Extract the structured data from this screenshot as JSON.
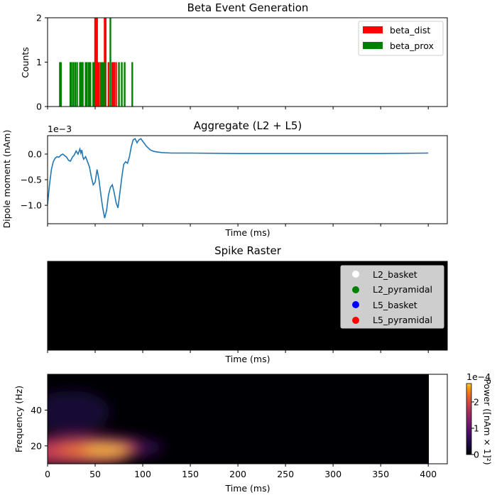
{
  "chart_data": [
    {
      "type": "bar",
      "title": "Beta Event Generation",
      "ylabel": "Counts",
      "xlabel": "",
      "xlim": [
        0,
        420
      ],
      "ylim": [
        0,
        2
      ],
      "yticks": [
        0,
        1,
        2
      ],
      "legend": {
        "placement": "top-right",
        "entries": [
          "beta_dist",
          "beta_prox"
        ]
      },
      "series": [
        {
          "name": "beta_dist",
          "color": "#ff0000",
          "bars": [
            [
              50,
              2
            ],
            [
              51,
              2
            ],
            [
              52,
              2
            ],
            [
              53,
              1
            ],
            [
              54,
              1
            ],
            [
              56,
              1
            ],
            [
              60,
              2
            ],
            [
              61,
              2
            ],
            [
              64,
              1
            ],
            [
              68,
              1
            ],
            [
              69,
              1
            ],
            [
              70,
              1
            ],
            [
              72,
              1
            ]
          ]
        },
        {
          "name": "beta_prox",
          "color": "#008000",
          "bars": [
            [
              13,
              1
            ],
            [
              14,
              1
            ],
            [
              24,
              1
            ],
            [
              25,
              1
            ],
            [
              27,
              1
            ],
            [
              29,
              1
            ],
            [
              31,
              1
            ],
            [
              34,
              1
            ],
            [
              35,
              1
            ],
            [
              36,
              1
            ],
            [
              37,
              1
            ],
            [
              40,
              1
            ],
            [
              41,
              1
            ],
            [
              43,
              1
            ],
            [
              44,
              1
            ],
            [
              45,
              1
            ],
            [
              48,
              1
            ],
            [
              49,
              1
            ],
            [
              56,
              1
            ],
            [
              57,
              1
            ],
            [
              58,
              1
            ],
            [
              59,
              1
            ],
            [
              60,
              1
            ],
            [
              66,
              2
            ],
            [
              75,
              1
            ],
            [
              78,
              1
            ],
            [
              81,
              1
            ],
            [
              89,
              1
            ]
          ]
        }
      ]
    },
    {
      "type": "line",
      "title": "Aggregate (L2 + L5)",
      "xlabel": "Time (ms)",
      "ylabel": "Dipole moment (nAm)",
      "offset_text": "1e−3",
      "xlim": [
        0,
        420
      ],
      "ylim": [
        -1.36,
        0.36
      ],
      "yticks": [
        0.0,
        -0.5,
        -1.0
      ],
      "ytick_labels": [
        "0.0",
        "−0.5",
        "−1.0"
      ],
      "color": "#1f77b4",
      "x": [
        0,
        2,
        4,
        6,
        8,
        10,
        12,
        14,
        16,
        18,
        20,
        22,
        24,
        26,
        28,
        30,
        32,
        34,
        35,
        36,
        37,
        38,
        40,
        42,
        44,
        46,
        48,
        50,
        52,
        54,
        56,
        58,
        60,
        62,
        64,
        66,
        68,
        70,
        72,
        74,
        76,
        78,
        80,
        82,
        84,
        86,
        88,
        90,
        92,
        94,
        96,
        98,
        100,
        104,
        108,
        112,
        120,
        130,
        150,
        200,
        250,
        300,
        350,
        400
      ],
      "y": [
        -0.98,
        -0.6,
        -0.3,
        -0.15,
        -0.08,
        -0.05,
        -0.06,
        -0.02,
        0.0,
        -0.03,
        -0.06,
        -0.12,
        -0.14,
        -0.06,
        -0.02,
        0.06,
        0.0,
        0.1,
        0.02,
        0.08,
        -0.05,
        -0.1,
        -0.05,
        -0.15,
        -0.25,
        -0.45,
        -0.6,
        -0.55,
        -0.3,
        -0.5,
        -0.8,
        -1.05,
        -1.25,
        -1.1,
        -0.8,
        -0.65,
        -0.6,
        -0.75,
        -0.95,
        -1.05,
        -0.75,
        -0.45,
        -0.2,
        -0.15,
        -0.18,
        -0.05,
        0.15,
        0.28,
        0.3,
        0.22,
        0.28,
        0.3,
        0.25,
        0.15,
        0.08,
        0.05,
        0.03,
        0.02,
        0.02,
        0.01,
        0.01,
        0.01,
        0.01,
        0.02
      ]
    },
    {
      "type": "scatter",
      "title": "Spike Raster",
      "xlabel": "Time (ms)",
      "background": "#000000",
      "legend": {
        "placement": "top-right",
        "entries": [
          {
            "name": "L2_basket",
            "color": "#ffffff"
          },
          {
            "name": "L2_pyramidal",
            "color": "#008000"
          },
          {
            "name": "L5_basket",
            "color": "#0000ff"
          },
          {
            "name": "L5_pyramidal",
            "color": "#ff0000"
          }
        ]
      }
    },
    {
      "type": "heatmap",
      "xlabel": "Time (ms)",
      "ylabel": "Frequency (Hz)",
      "xlim": [
        0,
        420
      ],
      "ylim": [
        10,
        60
      ],
      "xticks": [
        0,
        50,
        100,
        150,
        200,
        250,
        300,
        350,
        400
      ],
      "yticks": [
        20,
        40
      ],
      "colormap": "inferno",
      "data_xmax": 400,
      "colorbar": {
        "label": "Power ([nAm × 1]²)",
        "offset_text": "1e−4",
        "ticks": [
          0,
          1,
          2
        ],
        "range": [
          0,
          2.7
        ]
      },
      "peak": {
        "time": 60,
        "freq": 16,
        "power": 2.7
      }
    }
  ]
}
